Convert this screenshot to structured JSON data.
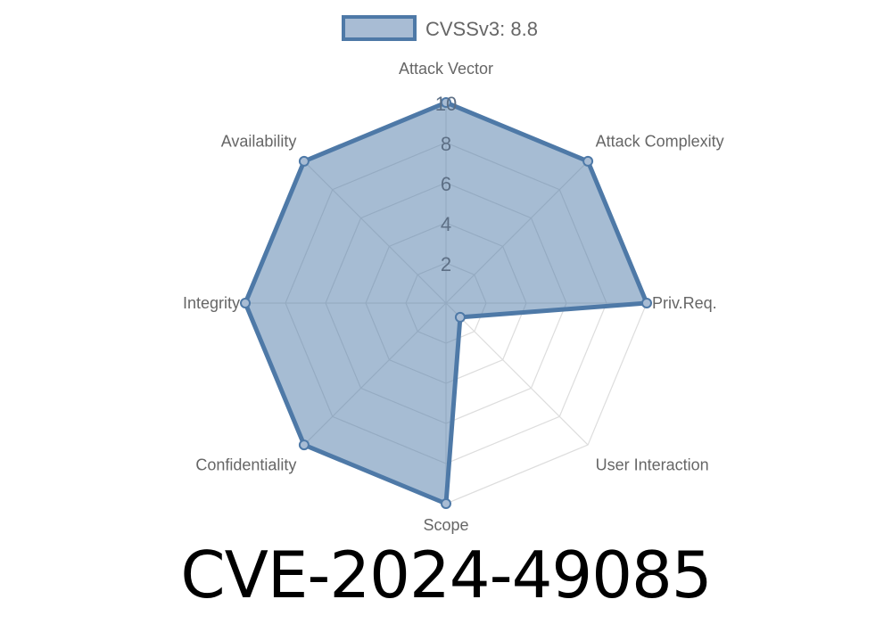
{
  "chart_data": {
    "type": "radar",
    "axes": [
      "Attack Vector",
      "Attack Complexity",
      "Priv.Req.",
      "User Interaction",
      "Scope",
      "Confidentiality",
      "Integrity",
      "Availability"
    ],
    "series": [
      {
        "name": "CVSSv3: 8.8",
        "values": [
          10,
          10,
          10,
          1,
          10,
          10,
          10,
          10
        ]
      }
    ],
    "rlim": [
      0,
      10
    ],
    "ticks": [
      "2",
      "4",
      "6",
      "8",
      "10"
    ],
    "tick_values": [
      2,
      4,
      6,
      8,
      10
    ],
    "grid": true,
    "legend": "top",
    "colors": {
      "fill": "#4e79a7",
      "stroke": "#4e79a7",
      "grid": "#dddddd",
      "text": "#666666"
    }
  },
  "title": "CVE-2024-49085"
}
